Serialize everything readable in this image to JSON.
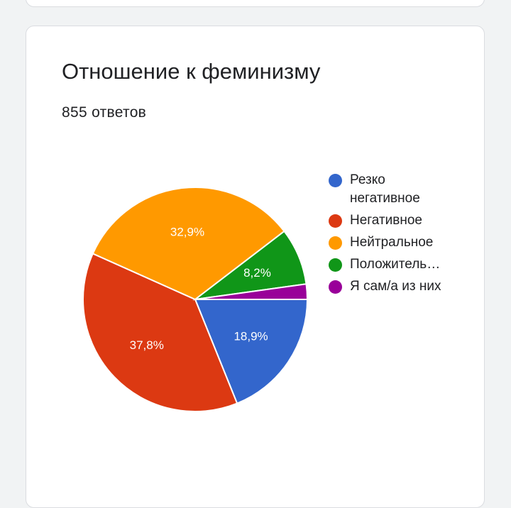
{
  "card": {
    "title": "Отношение к феминизму",
    "subtitle": "855 ответов"
  },
  "chart_data": {
    "type": "pie",
    "categories": [
      "Резко негативное",
      "Негативное",
      "Нейтральное",
      "Положитель…",
      "Я сам/а из них"
    ],
    "values": [
      18.9,
      37.8,
      32.9,
      8.2,
      2.2
    ],
    "data_labels": [
      "18,9%",
      "37,8%",
      "32,9%",
      "8,2%",
      ""
    ],
    "colors": [
      "#3366cc",
      "#dc3912",
      "#ff9900",
      "#109618",
      "#990099"
    ],
    "legend_position": "right"
  }
}
